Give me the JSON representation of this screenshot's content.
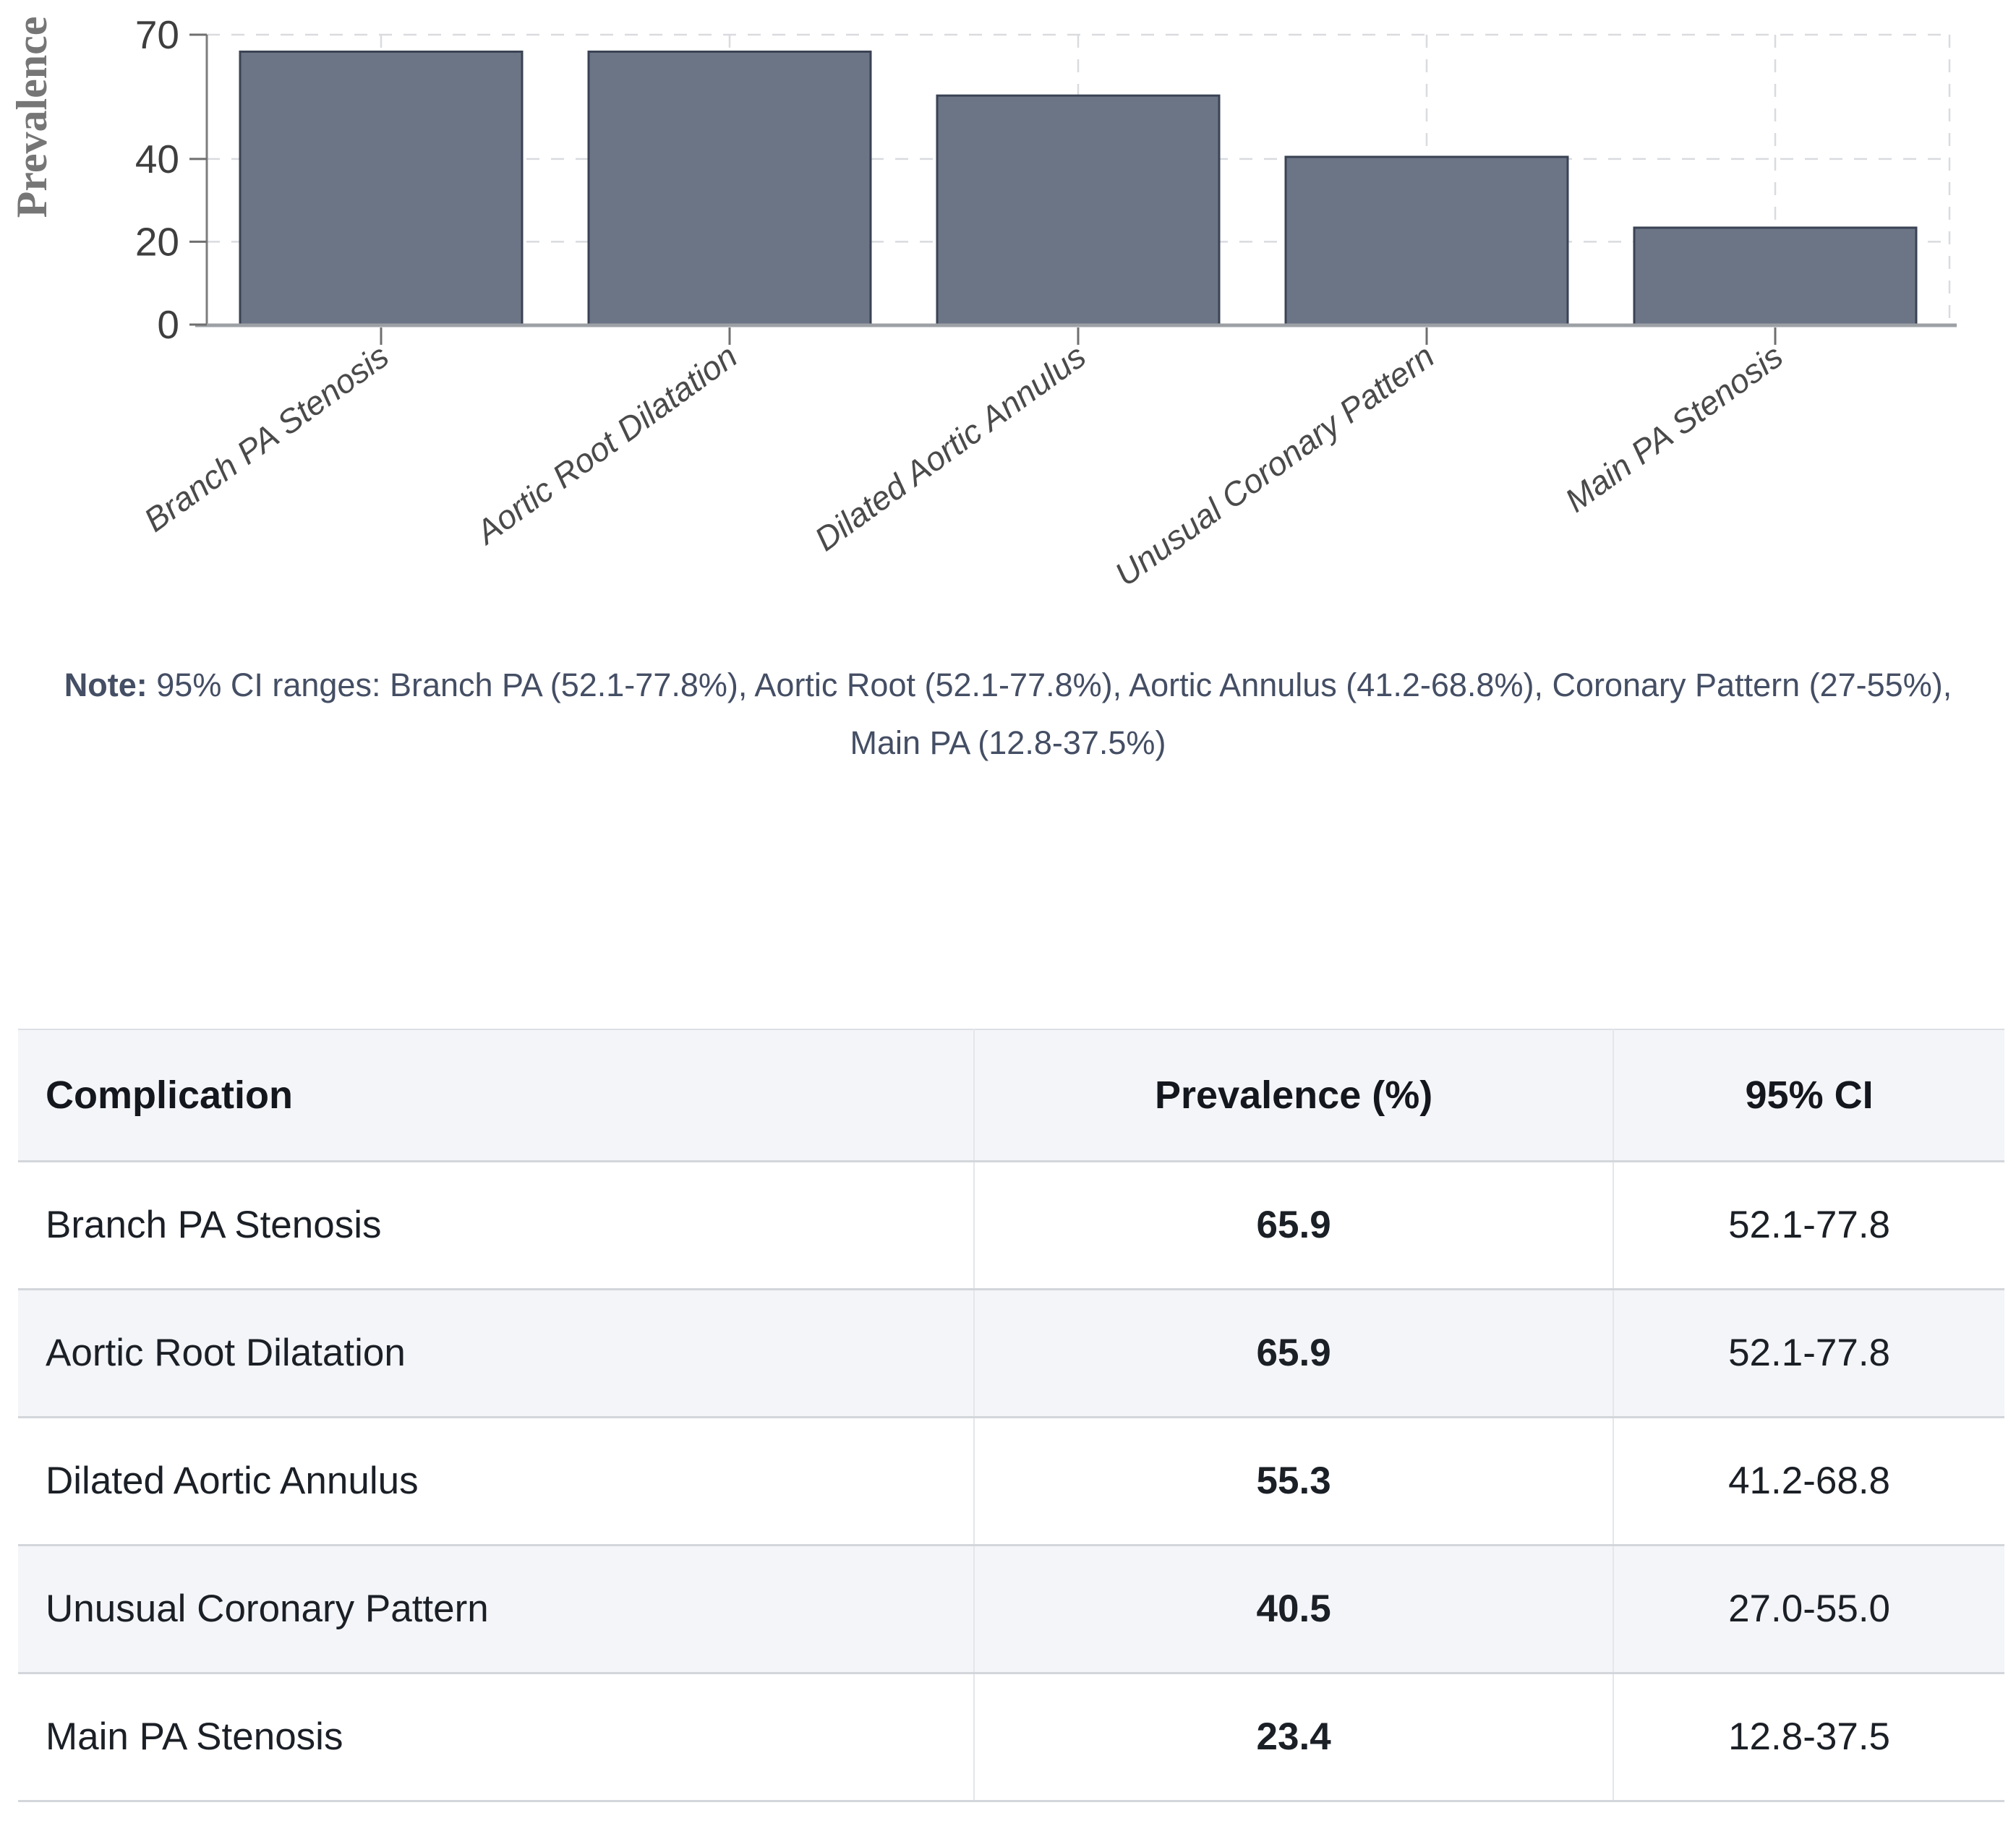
{
  "chart_data": {
    "type": "bar",
    "title": "",
    "xlabel": "",
    "ylabel": "Prevalence",
    "categories": [
      "Branch PA Stenosis",
      "Aortic Root Dilatation",
      "Dilated Aortic Annulus",
      "Unusual Coronary Pattern",
      "Main PA Stenosis"
    ],
    "values": [
      65.9,
      65.9,
      55.3,
      40.5,
      23.4
    ],
    "ylim": [
      0,
      70
    ],
    "yticks": [
      0,
      20,
      40,
      70
    ],
    "grid": "dashed-both",
    "legend": "none",
    "bar_fill": "#6c7586",
    "bar_stroke": "#3a4354"
  },
  "note": {
    "label": "Note:",
    "line1": "95% CI ranges: Branch PA (52.1-77.8%), Aortic Root (52.1-77.8%), Aortic Annulus (41.2-68.8%), Coronary Pattern (27-55%),",
    "line2": "Main PA (12.8-37.5%)"
  },
  "table": {
    "headers": [
      "Complication",
      "Prevalence (%)",
      "95% CI"
    ],
    "rows": [
      {
        "complication": "Branch PA Stenosis",
        "prevalence": "65.9",
        "ci": "52.1-77.8"
      },
      {
        "complication": "Aortic Root Dilatation",
        "prevalence": "65.9",
        "ci": "52.1-77.8"
      },
      {
        "complication": "Dilated Aortic Annulus",
        "prevalence": "55.3",
        "ci": "41.2-68.8"
      },
      {
        "complication": "Unusual Coronary Pattern",
        "prevalence": "40.5",
        "ci": "27.0-55.0"
      },
      {
        "complication": "Main PA Stenosis",
        "prevalence": "23.4",
        "ci": "12.8-37.5"
      }
    ]
  }
}
